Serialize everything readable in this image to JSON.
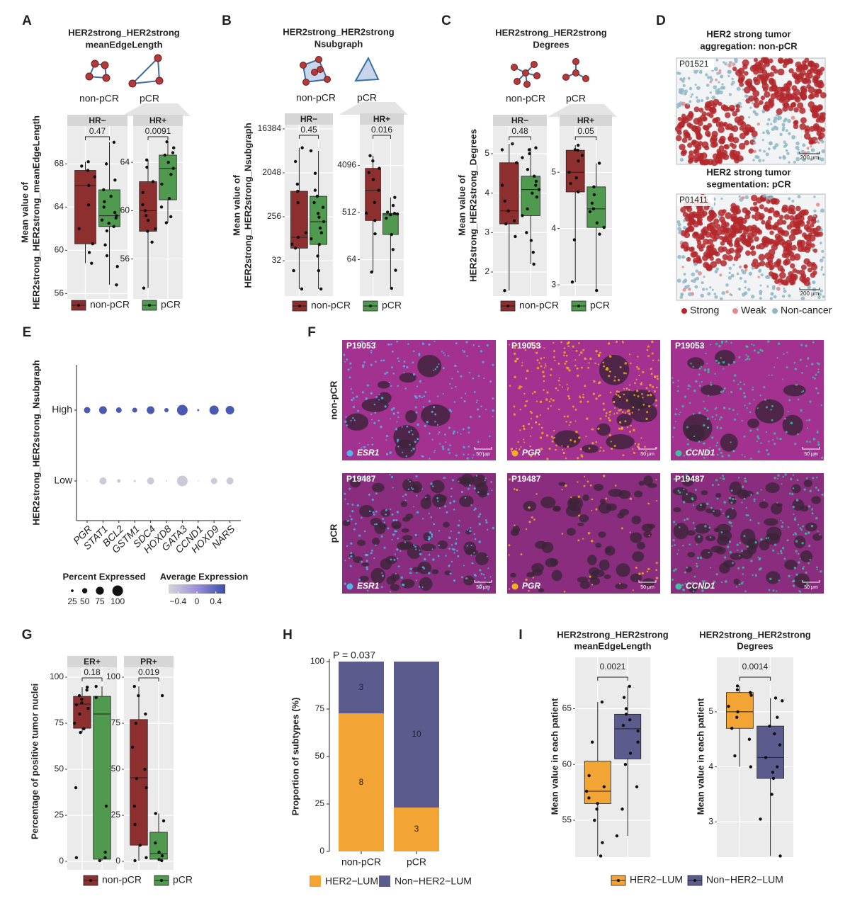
{
  "panel_letters": [
    "A",
    "B",
    "C",
    "D",
    "E",
    "F",
    "G",
    "H",
    "I"
  ],
  "chart_data": [
    {
      "type": "box",
      "title": [
        "HER2strong_HER2strong",
        "meanEdgeLength"
      ],
      "ylabel": [
        "Mean value of",
        "HER2strong_HER2strong_meanEdgeLength"
      ],
      "legend": "bottom",
      "grid": true,
      "series": [
        {
          "name": "non-pCR",
          "color": "#8e2f2f"
        },
        {
          "name": "pCR",
          "color": "#4f9a4f"
        }
      ],
      "facets": [
        {
          "name": "HR−",
          "pvalue": "0.47",
          "ylim": [
            55.5,
            71.5
          ],
          "yticks": [
            56,
            60,
            64,
            68
          ],
          "boxes": [
            {
              "low": 58.8,
              "q1": 60.6,
              "median": 66,
              "q3": 67.4,
              "high": 68.2,
              "points": [
                68.2,
                67.8,
                67.4,
                66.8,
                66,
                64.2,
                62,
                60.6,
                59.8,
                58.8
              ]
            },
            {
              "low": 56.8,
              "q1": 62.2,
              "median": 63.2,
              "q3": 65.6,
              "high": 70,
              "points": [
                70,
                68,
                66.5,
                65.6,
                65,
                64.5,
                64,
                63.5,
                63.2,
                63,
                62.8,
                62.5,
                62.2,
                61.8,
                60.5,
                59.5,
                58.5,
                56.8
              ]
            }
          ]
        },
        {
          "name": "HR+",
          "pvalue": "0.0091",
          "ylim": [
            52.7,
            67
          ],
          "yticks": [
            56,
            60,
            64
          ],
          "boxes": [
            {
              "low": 53.6,
              "q1": 58.3,
              "median": 60,
              "q3": 62.4,
              "high": 64.2,
              "points": [
                64.2,
                63.6,
                62.4,
                61.5,
                60.5,
                60,
                59.6,
                59.2,
                58.5,
                58.3,
                57.4,
                53.6
              ]
            },
            {
              "low": 59,
              "q1": 60.9,
              "median": 63.5,
              "q3": 64.6,
              "high": 65.7,
              "points": [
                65.7,
                65.2,
                64.8,
                64.6,
                64,
                63.5,
                63,
                62.2,
                61,
                60.3,
                59.5,
                59
              ]
            }
          ]
        }
      ]
    },
    {
      "type": "box",
      "title": [
        "HER2strong_HER2strong",
        "Nsubgraph"
      ],
      "ylabel": [
        "Mean value of",
        "HER2strong_HER2strong_Nsubgraph"
      ],
      "legend": "bottom",
      "grid": true,
      "ylog": true,
      "series": [
        {
          "name": "non-pCR",
          "color": "#8e2f2f"
        },
        {
          "name": "pCR",
          "color": "#4f9a4f"
        }
      ],
      "facets": [
        {
          "name": "HR−",
          "pvalue": "0.45",
          "ylim": [
            6,
            20000
          ],
          "yticks": [
            32,
            256,
            2048,
            16384
          ],
          "boxes": [
            {
              "low": 8.4,
              "q1": 58,
              "median": 97,
              "q3": 855,
              "high": 6700,
              "points": [
                6700,
                3500,
                1200,
                855,
                500,
                120,
                97,
                70,
                58,
                20,
                8.4
              ]
            },
            {
              "low": 8.4,
              "q1": 69,
              "median": 203,
              "q3": 675,
              "high": 5800,
              "points": [
                5800,
                2000,
                900,
                675,
                500,
                400,
                300,
                250,
                203,
                150,
                120,
                90,
                69,
                40,
                20,
                8.4
              ]
            }
          ]
        },
        {
          "name": "HR+",
          "pvalue": "0.016",
          "ylim": [
            12.8,
            24800
          ],
          "yticks": [
            64,
            512,
            4096
          ],
          "boxes": [
            {
              "low": 37,
              "q1": 360,
              "median": 1370,
              "q3": 3600,
              "high": 6300,
              "points": [
                6300,
                5000,
                3600,
                3000,
                2200,
                1370,
                800,
                500,
                360,
                200,
                37
              ]
            },
            {
              "low": 18,
              "q1": 194,
              "median": 465,
              "q3": 495,
              "high": 1000,
              "points": [
                1000,
                700,
                520,
                495,
                480,
                465,
                400,
                194,
                100,
                40,
                18
              ]
            }
          ]
        }
      ]
    },
    {
      "type": "box",
      "title": [
        "HER2strong_HER2strong",
        "Degrees"
      ],
      "ylabel": [
        "Mean value of",
        "HER2strong_HER2strong_Degrees"
      ],
      "legend": "bottom",
      "grid": true,
      "series": [
        {
          "name": "non-pCR",
          "color": "#8e2f2f"
        },
        {
          "name": "pCR",
          "color": "#4f9a4f"
        }
      ],
      "facets": [
        {
          "name": "HR−",
          "pvalue": "0.48",
          "ylim": [
            1.39,
            5.7
          ],
          "yticks": [
            2,
            3,
            4,
            5
          ],
          "boxes": [
            {
              "low": 1.53,
              "q1": 3.22,
              "median": 3.55,
              "q3": 4.77,
              "high": 5.25,
              "points": [
                5.25,
                5.1,
                4.77,
                4.2,
                3.8,
                3.55,
                3.3,
                3.22,
                2.9,
                1.53
              ]
            },
            {
              "low": 2.2,
              "q1": 3.43,
              "median": 4.09,
              "q3": 4.43,
              "high": 5.15,
              "points": [
                5.15,
                5.1,
                5.0,
                4.9,
                4.6,
                4.43,
                4.3,
                4.2,
                4.09,
                4.0,
                3.9,
                3.6,
                3.43,
                3.0,
                2.8,
                2.5,
                2.2
              ]
            }
          ]
        },
        {
          "name": "HR+",
          "pvalue": "0.05",
          "ylim": [
            2.8,
            5.82
          ],
          "yticks": [
            3,
            4,
            5
          ],
          "boxes": [
            {
              "low": 3.05,
              "q1": 4.65,
              "median": 5.0,
              "q3": 5.39,
              "high": 5.48,
              "points": [
                5.48,
                5.4,
                5.39,
                5.3,
                5.2,
                5.0,
                4.9,
                4.8,
                4.65,
                3.8,
                3.05
              ]
            },
            {
              "low": 2.9,
              "q1": 4.02,
              "median": 4.35,
              "q3": 4.74,
              "high": 5.16,
              "points": [
                5.16,
                4.74,
                4.6,
                4.45,
                4.35,
                4.3,
                4.1,
                4.02,
                3.9,
                2.9
              ]
            }
          ]
        }
      ]
    },
    {
      "type": "dot",
      "ylabel": "HER2strong_HER2strong_Nsubgraph",
      "rows": [
        "High",
        "Low"
      ],
      "categories": [
        "PGR",
        "STAT1",
        "BCL2",
        "GSTM1",
        "SDC4",
        "HOXD8",
        "GATA3",
        "CCND1",
        "HOXD9",
        "NARS"
      ],
      "percent": [
        [
          60,
          73,
          53,
          47,
          73,
          40,
          100,
          20,
          87,
          80
        ],
        [
          10,
          67,
          33,
          20,
          67,
          13,
          100,
          10,
          60,
          67
        ]
      ],
      "avg_expression": [
        [
          0.5,
          0.5,
          0.5,
          0.5,
          0.5,
          0.5,
          0.5,
          0.4,
          0.5,
          0.5
        ],
        [
          -0.5,
          -0.5,
          -0.5,
          -0.5,
          -0.5,
          -0.5,
          -0.5,
          -0.5,
          -0.5,
          -0.5
        ]
      ],
      "size_title": "Percent Expressed",
      "size_ticks": [
        25,
        50,
        75,
        100
      ],
      "color_title": "Average Expression",
      "color_lim": [
        -0.6,
        0.6
      ],
      "color_ticks": [
        {
          "value": -0.4,
          "label": "−0.4"
        },
        0,
        0.4
      ],
      "colors": [
        "#d6d6d6",
        "#9b8fd8",
        "#3a4fa8"
      ]
    },
    {
      "type": "box",
      "ylabel": [
        "Percentage of positive tumor nuclei"
      ],
      "legend": "bottom",
      "grid": true,
      "series": [
        {
          "name": "non-pCR",
          "color": "#8e2f2f"
        },
        {
          "name": "pCR",
          "color": "#4f9a4f"
        }
      ],
      "facets": [
        {
          "name": "ER+",
          "pvalue": "0.18",
          "ylim": [
            -4.6,
            105.4
          ],
          "yticks": [
            0,
            25,
            50,
            75,
            100
          ],
          "boxes": [
            {
              "low": 70,
              "q1": 72.3,
              "median": 85.4,
              "q3": 89.6,
              "high": 94.6,
              "points": [
                94.6,
                93,
                90,
                88,
                86,
                85,
                83,
                80,
                75,
                72,
                70,
                40,
                2
              ]
            },
            {
              "low": 0.4,
              "q1": 1.2,
              "median": 80,
              "q3": 89.6,
              "high": 95,
              "points": [
                95,
                89,
                30,
                5,
                2,
                0.4
              ]
            }
          ]
        },
        {
          "name": "PR+",
          "pvalue": "0.019",
          "ylim": [
            -4.6,
            105.4
          ],
          "yticks": [
            0,
            25,
            50,
            75,
            100
          ],
          "boxes": [
            {
              "low": 0.4,
              "q1": 8.8,
              "median": 45.4,
              "q3": 77,
              "high": 95,
              "points": [
                95,
                90,
                80,
                75,
                62,
                50,
                45,
                40,
                30,
                20,
                8.8,
                2,
                0.4
              ]
            },
            {
              "low": 0.4,
              "q1": 1.2,
              "median": 4.2,
              "q3": 15.8,
              "high": 26,
              "points": [
                90,
                26,
                22,
                10,
                5,
                3,
                1,
                0.4
              ]
            }
          ]
        }
      ]
    },
    {
      "type": "stacked_bar",
      "annotation": "P = 0.037",
      "ylabel": "Proportion of  subtypes (%)",
      "legend": "bottom",
      "categories": [
        "non-pCR",
        "pCR"
      ],
      "ylim": [
        0,
        100
      ],
      "yticks": [
        0,
        25,
        50,
        75,
        100
      ],
      "series": [
        {
          "name": "HER2−LUM",
          "color": "#f2a535",
          "values": [
            72.7,
            23.1
          ],
          "counts": [
            8,
            3
          ]
        },
        {
          "name": "Non−HER2−LUM",
          "color": "#5c5b8e",
          "values": [
            27.3,
            76.9
          ],
          "counts": [
            3,
            10
          ]
        }
      ]
    },
    {
      "type": "box",
      "legend": "bottom",
      "grid": true,
      "series": [
        {
          "name": "HER2−LUM",
          "color": "#f2a535"
        },
        {
          "name": "Non−HER2−LUM",
          "color": "#5c5b8e"
        }
      ],
      "facets": [
        {
          "title": [
            "HER2strong_HER2strong",
            "meanEdgeLength"
          ],
          "ylabel": "Mean value in each patient",
          "pvalue": "0.0021",
          "ylim": [
            51.7,
            69.6
          ],
          "yticks": [
            55,
            60,
            65
          ],
          "boxes": [
            {
              "low": 51.8,
              "q1": 56.5,
              "median": 57.6,
              "q3": 60.3,
              "high": 65.6,
              "points": [
                65.6,
                62,
                59,
                58,
                57.6,
                57,
                56.5,
                56,
                55,
                53,
                51.8
              ]
            },
            {
              "low": 53.6,
              "q1": 60.5,
              "median": 63.2,
              "q3": 64.5,
              "high": 67,
              "points": [
                67,
                66,
                65,
                64.5,
                64,
                63.5,
                63,
                62,
                61,
                60,
                58,
                56,
                53.6
              ]
            }
          ]
        },
        {
          "title": [
            "HER2strong_HER2strong",
            "Degrees"
          ],
          "ylabel": "Mean value in each patient",
          "pvalue": "0.0014",
          "ylim": [
            2.36,
            5.99
          ],
          "yticks": [
            3,
            4,
            5
          ],
          "boxes": [
            {
              "low": 4.0,
              "q1": 4.7,
              "median": 5.0,
              "q3": 5.35,
              "high": 5.47,
              "points": [
                5.47,
                5.4,
                5.35,
                5.3,
                5.1,
                5.0,
                4.9,
                4.7,
                4.5,
                4.2,
                4.0
              ]
            },
            {
              "low": 2.38,
              "q1": 3.79,
              "median": 4.17,
              "q3": 4.74,
              "high": 5.25,
              "points": [
                5.25,
                5.2,
                4.9,
                4.74,
                4.6,
                4.4,
                4.17,
                4.0,
                3.9,
                3.79,
                3.5,
                3.05,
                2.38
              ]
            }
          ]
        }
      ]
    }
  ],
  "images": {
    "D": {
      "titles": [
        [
          "HER2 strong tumor",
          "aggregation: non-pCR"
        ],
        [
          "HER2 strong tumor",
          "segmentation: pCR"
        ]
      ],
      "samples": [
        "P01521",
        "P01411"
      ],
      "scale": "200 μm",
      "legend": [
        {
          "name": "Strong",
          "color": "#b3282c"
        },
        {
          "name": "Weak",
          "color": "#e58a8c"
        },
        {
          "name": "Non-cancer",
          "color": "#8fb6c6"
        }
      ]
    },
    "F": {
      "rows": [
        {
          "name": "non-pCR",
          "sample": "P19053"
        },
        {
          "name": "pCR",
          "sample": "P19487"
        }
      ],
      "genes": [
        {
          "name": "ESR1",
          "color": "#4fb6e8"
        },
        {
          "name": "PGR",
          "color": "#f0b020"
        },
        {
          "name": "CCND1",
          "color": "#3fc0a0"
        }
      ],
      "scale": "50 μm"
    }
  }
}
